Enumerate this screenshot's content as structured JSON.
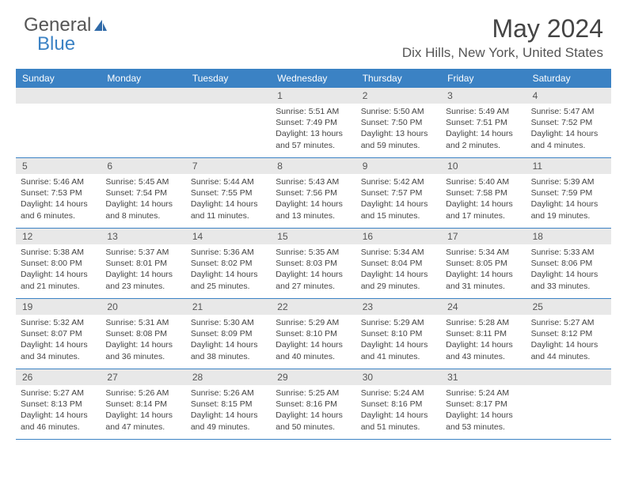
{
  "brand": {
    "part1": "General",
    "part2": "Blue"
  },
  "header": {
    "title": "May 2024",
    "location": "Dix Hills, New York, United States"
  },
  "colors": {
    "accent": "#3b82c4",
    "dayband": "#e8e8e8",
    "text": "#444444",
    "bg": "#ffffff"
  },
  "dayNames": [
    "Sunday",
    "Monday",
    "Tuesday",
    "Wednesday",
    "Thursday",
    "Friday",
    "Saturday"
  ],
  "calendar": {
    "startOffset": 3,
    "days": [
      {
        "n": "1",
        "sunrise": "5:51 AM",
        "sunset": "7:49 PM",
        "daylight": "13 hours and 57 minutes."
      },
      {
        "n": "2",
        "sunrise": "5:50 AM",
        "sunset": "7:50 PM",
        "daylight": "13 hours and 59 minutes."
      },
      {
        "n": "3",
        "sunrise": "5:49 AM",
        "sunset": "7:51 PM",
        "daylight": "14 hours and 2 minutes."
      },
      {
        "n": "4",
        "sunrise": "5:47 AM",
        "sunset": "7:52 PM",
        "daylight": "14 hours and 4 minutes."
      },
      {
        "n": "5",
        "sunrise": "5:46 AM",
        "sunset": "7:53 PM",
        "daylight": "14 hours and 6 minutes."
      },
      {
        "n": "6",
        "sunrise": "5:45 AM",
        "sunset": "7:54 PM",
        "daylight": "14 hours and 8 minutes."
      },
      {
        "n": "7",
        "sunrise": "5:44 AM",
        "sunset": "7:55 PM",
        "daylight": "14 hours and 11 minutes."
      },
      {
        "n": "8",
        "sunrise": "5:43 AM",
        "sunset": "7:56 PM",
        "daylight": "14 hours and 13 minutes."
      },
      {
        "n": "9",
        "sunrise": "5:42 AM",
        "sunset": "7:57 PM",
        "daylight": "14 hours and 15 minutes."
      },
      {
        "n": "10",
        "sunrise": "5:40 AM",
        "sunset": "7:58 PM",
        "daylight": "14 hours and 17 minutes."
      },
      {
        "n": "11",
        "sunrise": "5:39 AM",
        "sunset": "7:59 PM",
        "daylight": "14 hours and 19 minutes."
      },
      {
        "n": "12",
        "sunrise": "5:38 AM",
        "sunset": "8:00 PM",
        "daylight": "14 hours and 21 minutes."
      },
      {
        "n": "13",
        "sunrise": "5:37 AM",
        "sunset": "8:01 PM",
        "daylight": "14 hours and 23 minutes."
      },
      {
        "n": "14",
        "sunrise": "5:36 AM",
        "sunset": "8:02 PM",
        "daylight": "14 hours and 25 minutes."
      },
      {
        "n": "15",
        "sunrise": "5:35 AM",
        "sunset": "8:03 PM",
        "daylight": "14 hours and 27 minutes."
      },
      {
        "n": "16",
        "sunrise": "5:34 AM",
        "sunset": "8:04 PM",
        "daylight": "14 hours and 29 minutes."
      },
      {
        "n": "17",
        "sunrise": "5:34 AM",
        "sunset": "8:05 PM",
        "daylight": "14 hours and 31 minutes."
      },
      {
        "n": "18",
        "sunrise": "5:33 AM",
        "sunset": "8:06 PM",
        "daylight": "14 hours and 33 minutes."
      },
      {
        "n": "19",
        "sunrise": "5:32 AM",
        "sunset": "8:07 PM",
        "daylight": "14 hours and 34 minutes."
      },
      {
        "n": "20",
        "sunrise": "5:31 AM",
        "sunset": "8:08 PM",
        "daylight": "14 hours and 36 minutes."
      },
      {
        "n": "21",
        "sunrise": "5:30 AM",
        "sunset": "8:09 PM",
        "daylight": "14 hours and 38 minutes."
      },
      {
        "n": "22",
        "sunrise": "5:29 AM",
        "sunset": "8:10 PM",
        "daylight": "14 hours and 40 minutes."
      },
      {
        "n": "23",
        "sunrise": "5:29 AM",
        "sunset": "8:10 PM",
        "daylight": "14 hours and 41 minutes."
      },
      {
        "n": "24",
        "sunrise": "5:28 AM",
        "sunset": "8:11 PM",
        "daylight": "14 hours and 43 minutes."
      },
      {
        "n": "25",
        "sunrise": "5:27 AM",
        "sunset": "8:12 PM",
        "daylight": "14 hours and 44 minutes."
      },
      {
        "n": "26",
        "sunrise": "5:27 AM",
        "sunset": "8:13 PM",
        "daylight": "14 hours and 46 minutes."
      },
      {
        "n": "27",
        "sunrise": "5:26 AM",
        "sunset": "8:14 PM",
        "daylight": "14 hours and 47 minutes."
      },
      {
        "n": "28",
        "sunrise": "5:26 AM",
        "sunset": "8:15 PM",
        "daylight": "14 hours and 49 minutes."
      },
      {
        "n": "29",
        "sunrise": "5:25 AM",
        "sunset": "8:16 PM",
        "daylight": "14 hours and 50 minutes."
      },
      {
        "n": "30",
        "sunrise": "5:24 AM",
        "sunset": "8:16 PM",
        "daylight": "14 hours and 51 minutes."
      },
      {
        "n": "31",
        "sunrise": "5:24 AM",
        "sunset": "8:17 PM",
        "daylight": "14 hours and 53 minutes."
      }
    ]
  },
  "labels": {
    "sunrise": "Sunrise:",
    "sunset": "Sunset:",
    "daylight": "Daylight:"
  }
}
